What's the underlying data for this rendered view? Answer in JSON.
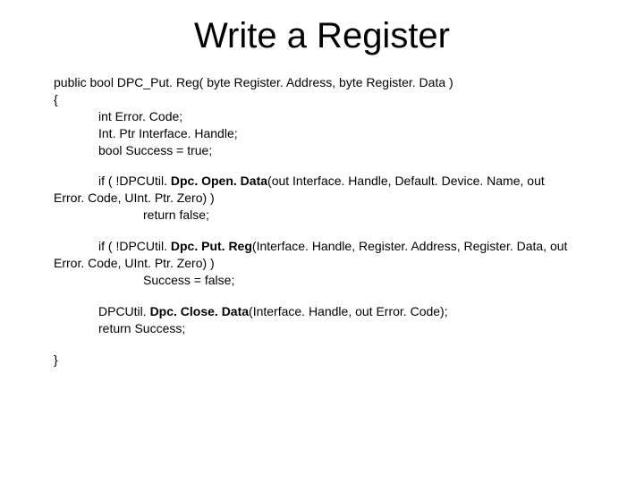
{
  "title": "Write a Register",
  "sig": "public bool DPC_Put. Reg( byte Register. Address, byte Register. Data )",
  "openBrace": "{",
  "decl1": "int Error. Code;",
  "decl2": "Int. Ptr Interface. Handle;",
  "decl3": "bool Success = true;",
  "if1_a": "if ( !DPCUtil. ",
  "if1_b": "Dpc. Open. Data",
  "if1_c": "(out Interface. Handle, Default. Device. Name, out",
  "if1_line2": "Error. Code, UInt. Ptr. Zero) )",
  "if1_ret": "return false;",
  "if2_a": "if ( !DPCUtil. ",
  "if2_b": "Dpc. Put. Reg",
  "if2_c": "(Interface. Handle, Register. Address, Register. Data, out",
  "if2_line2": "Error. Code, UInt. Ptr. Zero) )",
  "if2_ret": "Success = false;",
  "close_a": "DPCUtil. ",
  "close_b": "Dpc. Close. Data",
  "close_c": "(Interface. Handle, out Error. Code);",
  "retSuccess": "return Success;",
  "closeBrace": "}"
}
